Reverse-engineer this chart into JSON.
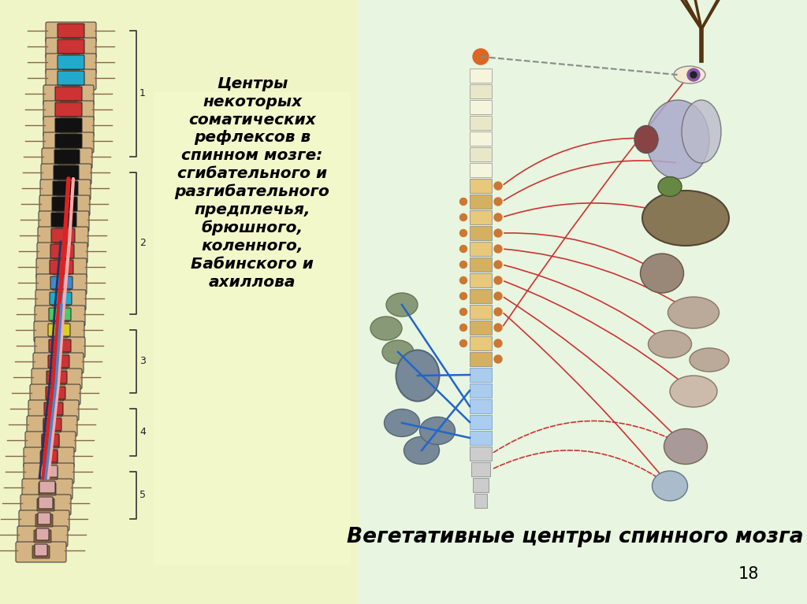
{
  "title_text": "Центры\nнекоторых\nсоматических\nрефлексов в\nспинном мозге:\nсгибательного и\nразгибательного\nпредплечья,\nбрюшного,\nколенного,\nБабинского и\nахиллова",
  "bottom_text": "Вегетативные центры спинного мозга",
  "page_number": "18",
  "slide_bg": "#ffffff",
  "left_panel_bg": "#f0f5c8",
  "right_panel_bg": "#e8f5e0",
  "text_panel_bg": "#f5facc",
  "bracket_color": "#333333",
  "spine_vertebra_color": "#c8a870",
  "spine_outline": "#333333",
  "bracket_labels": [
    "1",
    "2",
    "3",
    "4",
    "5"
  ]
}
